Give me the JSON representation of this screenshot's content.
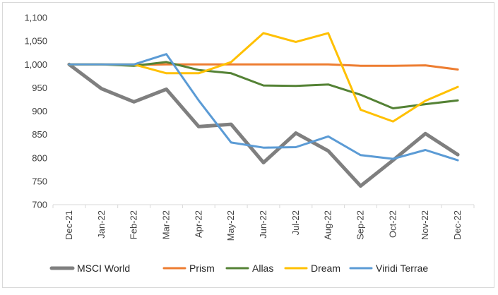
{
  "chart_data": {
    "type": "line",
    "title": "",
    "xlabel": "",
    "ylabel": "",
    "ylim": [
      700,
      1100
    ],
    "yticks": [
      700,
      750,
      800,
      850,
      900,
      950,
      1000,
      1050,
      1100
    ],
    "ytick_labels": [
      "700",
      "750",
      "800",
      "850",
      "900",
      "950",
      "1,000",
      "1,050",
      "1,100"
    ],
    "categories": [
      "Dec-21",
      "Jan-22",
      "Feb-22",
      "Mar-22",
      "Apr-22",
      "May-22",
      "Jun-22",
      "Jul-22",
      "Aug-22",
      "Sep-22",
      "Oct-22",
      "Nov-22",
      "Dec-22"
    ],
    "grid": false,
    "legend_position": "bottom",
    "series": [
      {
        "name": "MSCI World",
        "color": "#7f7f7f",
        "width": 5,
        "values": [
          1000,
          948,
          920,
          947,
          867,
          872,
          790,
          853,
          815,
          740,
          795,
          852,
          807
        ]
      },
      {
        "name": "Prism",
        "color": "#ed7d31",
        "width": 3,
        "values": [
          1000,
          1000,
          999,
          1000,
          1000,
          1000,
          1000,
          1000,
          1000,
          997,
          997,
          998,
          989
        ]
      },
      {
        "name": "Allas",
        "color": "#548235",
        "width": 3,
        "values": [
          1000,
          1000,
          997,
          1005,
          988,
          981,
          955,
          954,
          957,
          935,
          906,
          915,
          923
        ]
      },
      {
        "name": "Dream",
        "color": "#ffc000",
        "width": 3,
        "values": [
          1000,
          1000,
          1000,
          981,
          981,
          1005,
          1067,
          1048,
          1067,
          903,
          878,
          922,
          952
        ]
      },
      {
        "name": "Viridi Terrae",
        "color": "#5b9bd5",
        "width": 3,
        "values": [
          1000,
          1000,
          1000,
          1022,
          923,
          833,
          822,
          823,
          846,
          806,
          798,
          817,
          795
        ]
      }
    ]
  }
}
